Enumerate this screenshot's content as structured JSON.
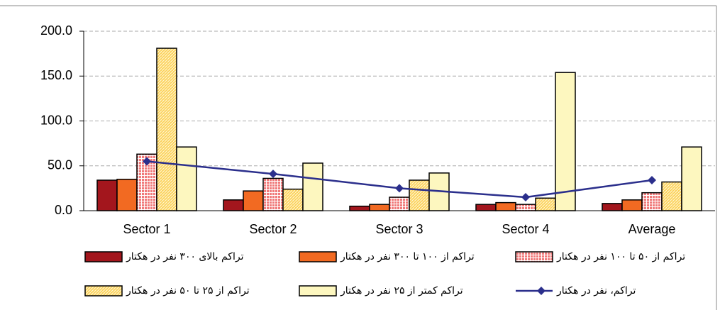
{
  "chart_data": {
    "type": "bar",
    "categories": [
      "Sector 1",
      "Sector 2",
      "Sector 3",
      "Sector 4",
      "Average"
    ],
    "series": [
      {
        "name": "تراکم بالای ۳۰۰ نفر در هکتار",
        "color": "#a3161d",
        "values": [
          34,
          12,
          5,
          7,
          8
        ]
      },
      {
        "name": "تراکم از ۱۰۰ تا ۳۰۰ نفر در هکتار",
        "color": "#f26a22",
        "values": [
          35,
          22,
          7,
          9,
          12
        ]
      },
      {
        "name": "تراکم از ۵۰ تا ۱۰۰ نفر در هکتار",
        "color": "#f07a7a",
        "pattern": "dots",
        "values": [
          63,
          36,
          15,
          7,
          20
        ]
      },
      {
        "name": "تراکم از ۲۵ تا ۵۰ نفر در هکتار",
        "color": "#fcd15c",
        "pattern": "hatch",
        "values": [
          181,
          24,
          34,
          14,
          32
        ]
      },
      {
        "name": "تراکم کمتر از ۲۵ نفر در هکتار",
        "color": "#fdf7bf",
        "values": [
          71,
          53,
          42,
          154,
          71
        ]
      },
      {
        "name": "تراکم، نفر در هکتار",
        "color": "#2b2f8c",
        "type": "line",
        "values": [
          55,
          41,
          25,
          15,
          34
        ]
      }
    ],
    "ylim": [
      0,
      200
    ],
    "yticks": [
      {
        "value": 0,
        "label": "0.0"
      },
      {
        "value": 50,
        "label": "50.0"
      },
      {
        "value": 100,
        "label": "100.0"
      },
      {
        "value": 150,
        "label": "150.0"
      },
      {
        "value": 200,
        "label": "200.0"
      }
    ],
    "grid": true
  }
}
